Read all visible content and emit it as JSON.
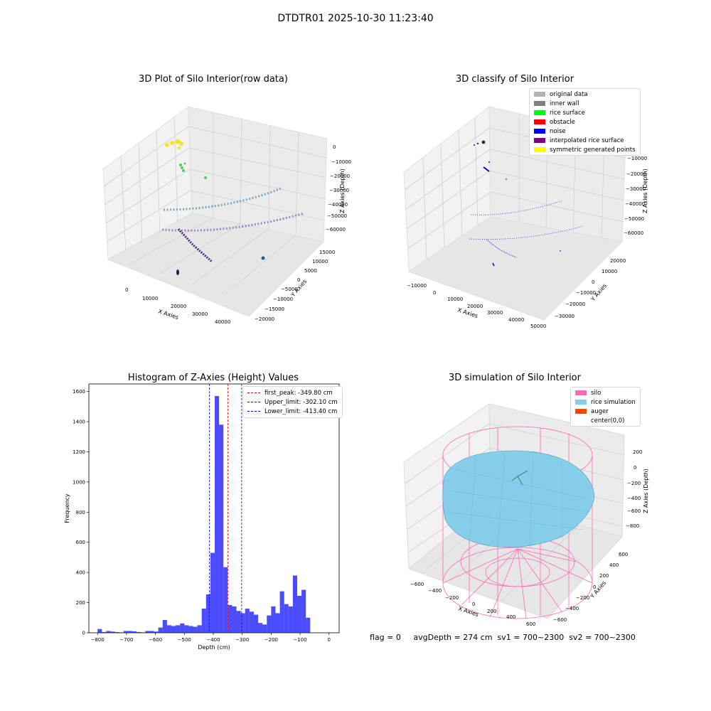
{
  "suptitle": "DTDTR01 2025-10-30 11:23:40",
  "footer": {
    "flag": "flag = 0",
    "stats": "avgDepth = 274 cm  sv1 = 700~2300  sv2 = 700~2300"
  },
  "panels": {
    "raw": {
      "title": "3D Plot of Silo Interior(row data)",
      "xlabel": "X Axies",
      "ylabel": "Y Axies",
      "zlabel": "Z Axies (Depth)",
      "xticks": [
        "0",
        "10000",
        "20000",
        "30000",
        "40000"
      ],
      "yticks": [
        "15000",
        "10000",
        "5000",
        "0",
        "−5000",
        "−10000",
        "−15000",
        "−20000"
      ],
      "zticks": [
        "0",
        "−10000",
        "−20000",
        "−30000",
        "−40000",
        "−50000",
        "−60000"
      ]
    },
    "classify": {
      "title": "3D classify of Silo Interior",
      "xlabel": "X Axies",
      "ylabel": "Y Axies",
      "zlabel": "Z Axies (Depth)",
      "xticks": [
        "−10000",
        "0",
        "10000",
        "20000",
        "30000",
        "40000",
        "50000"
      ],
      "yticks": [
        "20000",
        "10000",
        "0",
        "−10000",
        "−20000",
        "−30000"
      ],
      "zticks": [
        "0",
        "−10000",
        "−20000",
        "−30000",
        "−40000",
        "−50000",
        "−60000"
      ],
      "legend": [
        {
          "label": "original data",
          "color": "#b3b3b3"
        },
        {
          "label": "inner wall",
          "color": "#808080"
        },
        {
          "label": "rice surface",
          "color": "#00ff00"
        },
        {
          "label": "obstacle",
          "color": "#ff0000"
        },
        {
          "label": "noise",
          "color": "#0000ff"
        },
        {
          "label": "interpolated rice surface",
          "color": "#800080"
        },
        {
          "label": "symmetric generated points",
          "color": "#ffff00"
        }
      ]
    },
    "simulation": {
      "title": "3D simulation of Silo Interior",
      "xlabel": "X Axies",
      "ylabel": "Y Axies",
      "zlabel": "Z Axies (Depth)",
      "xticks": [
        "−600",
        "−400",
        "−200",
        "0",
        "200",
        "400",
        "600"
      ],
      "yticks": [
        "600",
        "400",
        "200",
        "0",
        "−200",
        "−400",
        "−600"
      ],
      "zticks": [
        "200",
        "0",
        "−200",
        "−400",
        "−600",
        "−800"
      ],
      "legend": [
        {
          "label": "silo",
          "color": "#ff69b4"
        },
        {
          "label": "rice simulation",
          "color": "#87ceeb"
        },
        {
          "label": "auger",
          "color": "#ff4500"
        },
        {
          "label": "center(0,0)",
          "color": "#ffffff"
        }
      ]
    }
  },
  "chart_data": {
    "type": "bar",
    "title": "Histogram of Z-Axies (Height) Values",
    "xlabel": "Depth (cm)",
    "ylabel": "Frequency",
    "xlim": [
      -830,
      35
    ],
    "ylim": [
      0,
      1650
    ],
    "xticks": [
      -800,
      -700,
      -600,
      -500,
      -400,
      -300,
      -200,
      -100,
      0
    ],
    "yticks": [
      0,
      200,
      400,
      600,
      800,
      1000,
      1200,
      1400,
      1600
    ],
    "bar_color": "#0000ff",
    "bin_width": 15,
    "bin_start": -800,
    "values": [
      25,
      5,
      12,
      8,
      5,
      3,
      12,
      12,
      10,
      5,
      3,
      12,
      12,
      8,
      35,
      85,
      50,
      45,
      50,
      62,
      50,
      45,
      40,
      50,
      160,
      255,
      530,
      1570,
      1380,
      435,
      185,
      175,
      145,
      130,
      160,
      140,
      120,
      65,
      55,
      115,
      175,
      130,
      275,
      190,
      175,
      380,
      245,
      285,
      100
    ],
    "legend_position": "upper right",
    "lines": [
      {
        "label": "first_peak: -349.80 cm",
        "x": -349.8,
        "color": "#ff0000"
      },
      {
        "label": "Upper_limit: -302.10 cm",
        "x": -302.1,
        "color": "#0000ff"
      },
      {
        "label": "Lower_limit: -413.40 cm",
        "x": -413.4,
        "color": "#0000ff"
      }
    ]
  }
}
